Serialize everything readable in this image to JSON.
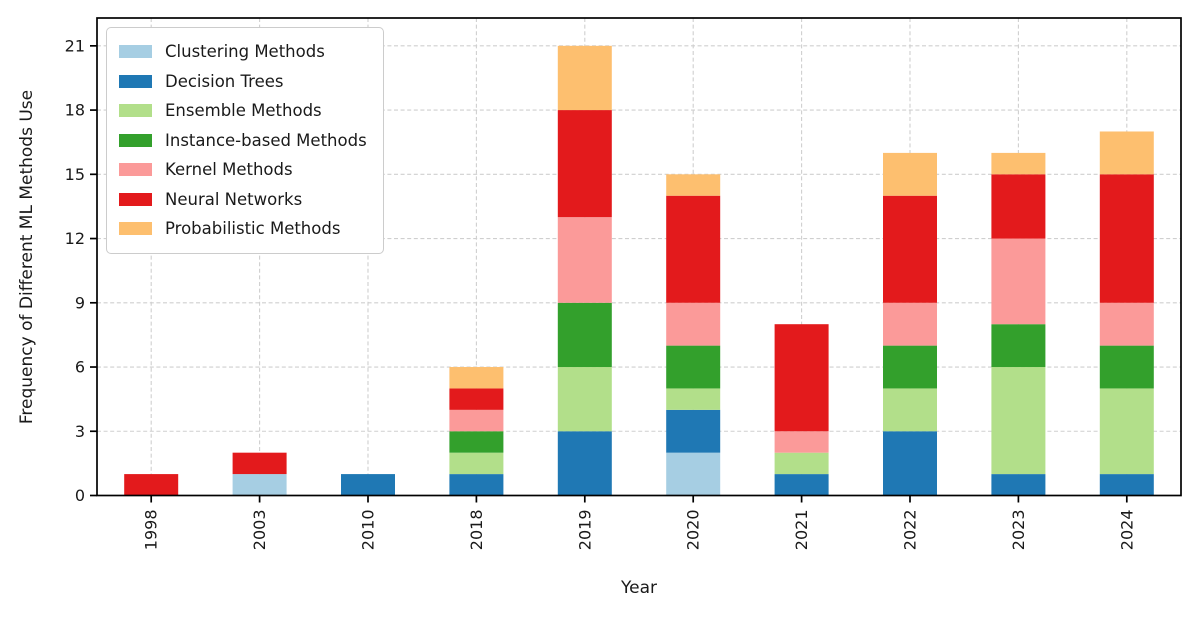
{
  "chart_data": {
    "type": "bar",
    "stacked": true,
    "title": "",
    "xlabel": "Year",
    "ylabel": "Frequency of Different ML Methods Use",
    "categories": [
      "1998",
      "2003",
      "2010",
      "2018",
      "2019",
      "2020",
      "2021",
      "2022",
      "2023",
      "2024"
    ],
    "series": [
      {
        "name": "Clustering Methods",
        "color": "#a6cee3",
        "values": [
          0,
          1,
          0,
          0,
          0,
          2,
          0,
          0,
          0,
          0
        ]
      },
      {
        "name": "Decision Trees",
        "color": "#1f78b4",
        "values": [
          0,
          0,
          1,
          1,
          3,
          2,
          1,
          3,
          1,
          1
        ]
      },
      {
        "name": "Ensemble Methods",
        "color": "#b2df8a",
        "values": [
          0,
          0,
          0,
          1,
          3,
          1,
          1,
          2,
          5,
          4
        ]
      },
      {
        "name": "Instance-based Methods",
        "color": "#33a02c",
        "values": [
          0,
          0,
          0,
          1,
          3,
          2,
          0,
          2,
          2,
          2
        ]
      },
      {
        "name": "Kernel Methods",
        "color": "#fb9a99",
        "values": [
          0,
          0,
          0,
          1,
          4,
          2,
          1,
          2,
          4,
          2
        ]
      },
      {
        "name": "Neural Networks",
        "color": "#e31a1c",
        "values": [
          1,
          1,
          0,
          1,
          5,
          5,
          5,
          5,
          3,
          6
        ]
      },
      {
        "name": "Probabilistic Methods",
        "color": "#fdbf6f",
        "values": [
          0,
          0,
          0,
          1,
          3,
          1,
          0,
          2,
          1,
          2
        ]
      }
    ],
    "stack_totals": [
      1,
      2,
      1,
      6,
      21,
      15,
      8,
      16,
      16,
      17
    ],
    "yticks": [
      0,
      3,
      6,
      9,
      12,
      15,
      18,
      21
    ],
    "ylim": [
      0,
      22.3
    ],
    "grid": true,
    "grid_style": "dashed",
    "legend_position": "upper left",
    "x_tick_label_rotation": 90,
    "style": {
      "background": "#ffffff",
      "text_color": "#1a1a1a",
      "grid_color": "#cfcfcf",
      "spine_color": "#000000",
      "legend_border_color": "#cccccc"
    }
  }
}
